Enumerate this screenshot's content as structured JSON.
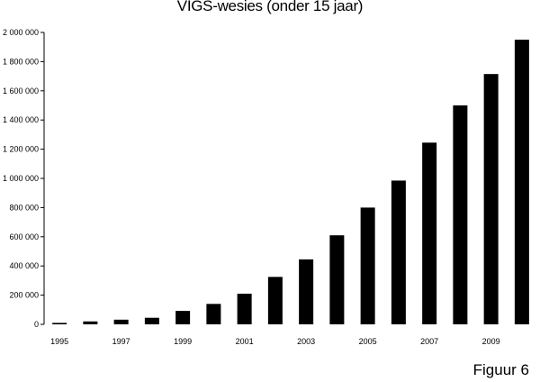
{
  "chart_data": {
    "type": "bar",
    "title": "VIGS-wesies (onder 15 jaar)",
    "xlabel": "",
    "ylabel": "",
    "years": [
      "1995",
      "1996",
      "1997",
      "1998",
      "1999",
      "2000",
      "2001",
      "2002",
      "2003",
      "2004",
      "2005",
      "2006",
      "2007",
      "2008",
      "2009",
      "2010"
    ],
    "x_tick_labels": [
      "1995",
      "1997",
      "1999",
      "2001",
      "2003",
      "2005",
      "2007",
      "2009"
    ],
    "values": [
      10000,
      20000,
      32000,
      45000,
      92000,
      140000,
      210000,
      325000,
      445000,
      610000,
      800000,
      985000,
      1245000,
      1500000,
      1715000,
      1950000
    ],
    "ylim": [
      0,
      2000000
    ],
    "y_ticks": [
      0,
      200000,
      400000,
      600000,
      800000,
      1000000,
      1200000,
      1400000,
      1600000,
      1800000,
      2000000
    ],
    "y_tick_labels": [
      "0",
      "200 000",
      "400 000",
      "600 000",
      "800 000",
      "1 000 000",
      "1 200 000",
      "1 400 000",
      "1 600 000",
      "1 800 000",
      "2 000 000"
    ],
    "bar_color": "#000000",
    "grid": false,
    "legend": "none"
  },
  "figure_label": "Figuur 6"
}
